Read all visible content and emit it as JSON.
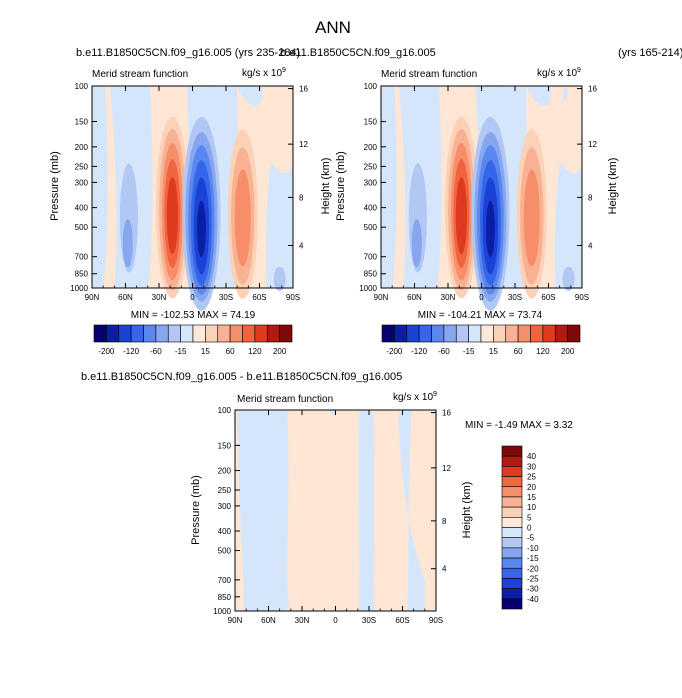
{
  "page": {
    "title": "ANN",
    "panel1_header": "b.e11.B1850C5CN.f09_g16.005 (yrs 235-284)",
    "panel2_header": "b.e11.B1850C5CN.f09_g16.005",
    "panel2_years": "(yrs 165-214)",
    "diff_header": "b.e11.B1850C5CN.f09_g16.005 - b.e11.B1850C5CN.f09_g16.005"
  },
  "chart_data": [
    {
      "type": "heatmap",
      "id": "case1",
      "title": "Merid stream function",
      "units_label": "kg/s x 10",
      "units_exp": "9",
      "xlabel": "",
      "ylabel": "Pressure (mb)",
      "y2label": "Height (km)",
      "x_ticks": [
        "90N",
        "60N",
        "30N",
        "0",
        "30S",
        "60S",
        "90S"
      ],
      "y_ticks": [
        "100",
        "150",
        "200",
        "250",
        "300",
        "400",
        "500",
        "700",
        "850",
        "1000"
      ],
      "y2_ticks": [
        "16",
        "12",
        "8",
        "4"
      ],
      "min_max_text": "MIN = -102.53  MAX =  74.19",
      "min": -102.53,
      "max": 74.19,
      "cells": [
        {
          "lat_from": 90,
          "lat_to": 80,
          "level": 0
        },
        {
          "lat_from": 80,
          "lat_to": 46,
          "level": 0
        },
        {
          "lat_from": 46,
          "lat_to": 33,
          "level": -1
        },
        {
          "lat_from": 36,
          "lat_to": 2,
          "level": 1
        },
        {
          "lat_from": 2,
          "lat_to": -38,
          "level": -1
        },
        {
          "lat_from": -38,
          "lat_to": -68,
          "level": 1
        },
        {
          "lat_from": -68,
          "lat_to": -90,
          "level": -1
        }
      ],
      "cells_note": "main circulation cells: -1 blue, 1 red"
    },
    {
      "type": "heatmap",
      "id": "case2",
      "title": "Merid stream function",
      "units_label": "kg/s x 10",
      "units_exp": "9",
      "xlabel": "",
      "ylabel": "Pressure (mb)",
      "y2label": "Height (km)",
      "x_ticks": [
        "90N",
        "60N",
        "30N",
        "0",
        "30S",
        "60S",
        "90S"
      ],
      "y_ticks": [
        "100",
        "150",
        "200",
        "250",
        "300",
        "400",
        "500",
        "700",
        "850",
        "1000"
      ],
      "y2_ticks": [
        "16",
        "12",
        "8",
        "4"
      ],
      "min_max_text": "MIN = -104.21  MAX =  73.74",
      "min": -104.21,
      "max": 73.74
    },
    {
      "type": "heatmap",
      "id": "difference",
      "title": "Merid stream function",
      "units_label": "kg/s x 10",
      "units_exp": "9",
      "xlabel": "",
      "ylabel": "Pressure (mb)",
      "y2label": "Height (km)",
      "x_ticks": [
        "90N",
        "60N",
        "30N",
        "0",
        "30S",
        "60S",
        "90S"
      ],
      "y_ticks": [
        "100",
        "150",
        "200",
        "250",
        "300",
        "400",
        "500",
        "700",
        "850",
        "1000"
      ],
      "y2_ticks": [
        "16",
        "12",
        "8",
        "4"
      ],
      "min_max_text": "MIN =  -1.49  MAX =   3.32",
      "min": -1.49,
      "max": 3.32
    }
  ],
  "colorbars": {
    "main": {
      "labels": [
        "-200",
        "-120",
        "-60",
        "-15",
        "15",
        "60",
        "120",
        "200"
      ],
      "colors": [
        "#08006e",
        "#0a1fa6",
        "#1a42d6",
        "#3565e8",
        "#5a86f0",
        "#86a6ef",
        "#b1c8f5",
        "#d6e6fa",
        "#fde9d9",
        "#fbd2b8",
        "#f8b293",
        "#f68e6a",
        "#f2643f",
        "#dd3a1f",
        "#b11a10",
        "#7d0908"
      ]
    },
    "diff": {
      "labels": [
        "40",
        "30",
        "25",
        "20",
        "15",
        "10",
        "5",
        "0",
        "-5",
        "-10",
        "-15",
        "-20",
        "-25",
        "-30",
        "-40"
      ],
      "colors": [
        "#7d0908",
        "#b11a10",
        "#dd3a1f",
        "#f2643f",
        "#f68e6a",
        "#f8b293",
        "#fbd2b8",
        "#fde9d9",
        "#d6e6fa",
        "#b1c8f5",
        "#86a6ef",
        "#5a86f0",
        "#3565e8",
        "#1a42d6",
        "#0a1fa6",
        "#08006e"
      ]
    }
  },
  "palette": {
    "pale_orange": "#fde6d3",
    "pale_blue": "#d6e6fa"
  }
}
